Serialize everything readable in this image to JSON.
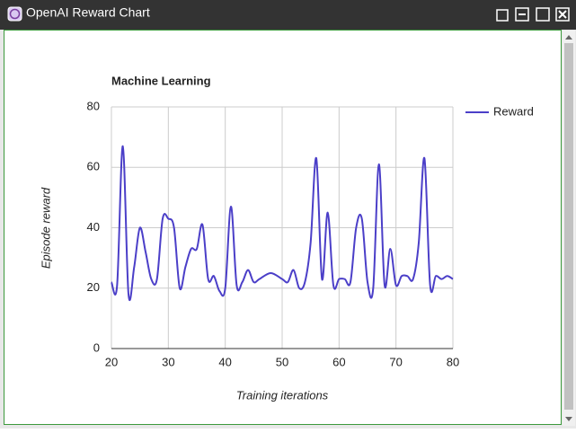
{
  "window": {
    "title": "OpenAI Reward Chart"
  },
  "chart_data": {
    "type": "line",
    "title": "Machine Learning",
    "x_label": "Training iterations",
    "y_label": "Episode reward",
    "x": [
      20,
      21,
      22,
      23,
      24,
      25,
      26,
      27,
      28,
      29,
      30,
      31,
      32,
      33,
      34,
      35,
      36,
      37,
      38,
      39,
      40,
      41,
      42,
      43,
      44,
      45,
      46,
      48,
      50,
      51,
      52,
      53,
      54,
      55,
      56,
      57,
      58,
      59,
      60,
      61,
      62,
      63,
      64,
      65,
      66,
      67,
      68,
      69,
      70,
      71,
      72,
      73,
      74,
      75,
      76,
      77,
      78,
      79,
      80
    ],
    "series": [
      {
        "name": "Reward",
        "color": "#4b3fc8",
        "values": [
          22,
          21,
          67,
          18,
          27,
          40,
          32,
          23,
          23,
          43,
          43,
          40,
          20,
          27,
          33,
          33,
          41,
          23,
          24,
          19,
          20,
          47,
          21,
          22,
          26,
          22,
          23,
          25,
          23,
          22,
          26,
          20,
          22,
          35,
          63,
          23,
          45,
          21,
          23,
          23,
          22,
          40,
          43,
          22,
          20,
          61,
          21,
          33,
          21,
          24,
          24,
          23,
          35,
          63,
          21,
          24,
          23,
          24,
          23
        ]
      }
    ],
    "xlim": [
      20,
      80
    ],
    "xticks": [
      20,
      30,
      40,
      50,
      60,
      70,
      80
    ],
    "ylim": [
      0,
      80
    ],
    "yticks": [
      0,
      20,
      40,
      60,
      80
    ],
    "grid": true,
    "legend": "right"
  }
}
